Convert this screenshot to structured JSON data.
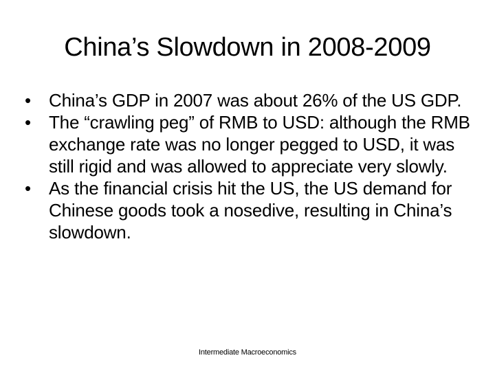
{
  "slide": {
    "title": "China’s Slowdown in 2008-2009",
    "bullet_symbol": "•",
    "bullets": [
      {
        "text": "China’s GDP in 2007 was about 26% of the US GDP."
      },
      {
        "text": "The “crawling peg” of RMB to USD: although the RMB exchange rate was no longer pegged to USD, it was still rigid and was allowed to appreciate very slowly."
      },
      {
        "text": "As the financial crisis hit the US, the US demand for Chinese goods took a nosedive, resulting in China’s slowdown."
      }
    ],
    "footer": "Intermediate Macroeconomics"
  }
}
